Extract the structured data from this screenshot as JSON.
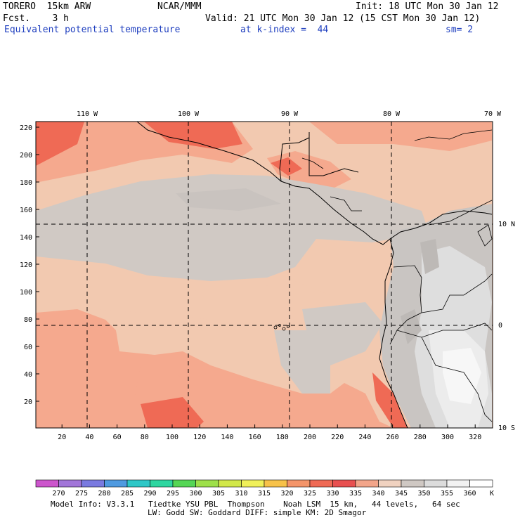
{
  "header": {
    "model": "TORERO  15km ARW",
    "org": "NCAR/MMM",
    "init": "Init: 18 UTC Mon 30 Jan 12",
    "fcst": "Fcst.    3 h",
    "valid": "Valid: 21 UTC Mon 30 Jan 12 (15 CST Mon 30 Jan 12)",
    "field": "Equivalent potential temperature",
    "level": "at k-index =  44",
    "smooth": "sm= 2"
  },
  "map": {
    "lon_labels": [
      "110 W",
      "100 W",
      "90 W",
      "80 W",
      "70 W"
    ],
    "lat_labels": [
      "10 N",
      "0",
      "10 S"
    ],
    "y_ticks": [
      "220",
      "200",
      "180",
      "160",
      "140",
      "120",
      "100",
      "80",
      "60",
      "40",
      "20"
    ],
    "x_ticks": [
      "20",
      "40",
      "60",
      "80",
      "100",
      "120",
      "140",
      "160",
      "180",
      "200",
      "220",
      "240",
      "260",
      "280",
      "300",
      "320"
    ]
  },
  "colorbar": {
    "unit": "K",
    "levels": [
      "270",
      "275",
      "280",
      "285",
      "290",
      "295",
      "300",
      "305",
      "310",
      "315",
      "320",
      "325",
      "330",
      "335",
      "340",
      "345",
      "350",
      "355",
      "360"
    ],
    "colors": [
      "#cc55cc",
      "#a276d9",
      "#7a7ae0",
      "#4f9ae0",
      "#2ec7c7",
      "#2ed6a0",
      "#55d655",
      "#9ee04a",
      "#d2e84a",
      "#f0f05a",
      "#f7c24a",
      "#f4956a",
      "#ef6a55",
      "#e85050",
      "#f2a58a",
      "#f0d2c0",
      "#cfc8c3",
      "#dcdcdc",
      "#f2f2f2",
      "#ffffff"
    ]
  },
  "footer": {
    "line1": "Model Info: V3.3.1   Tiedtke YSU PBL  Thompson    Noah LSM  15 km,   44 levels,   64 sec",
    "line2": "LW: Godd SW: Goddard DIFF: simple KM: 2D Smagor"
  }
}
